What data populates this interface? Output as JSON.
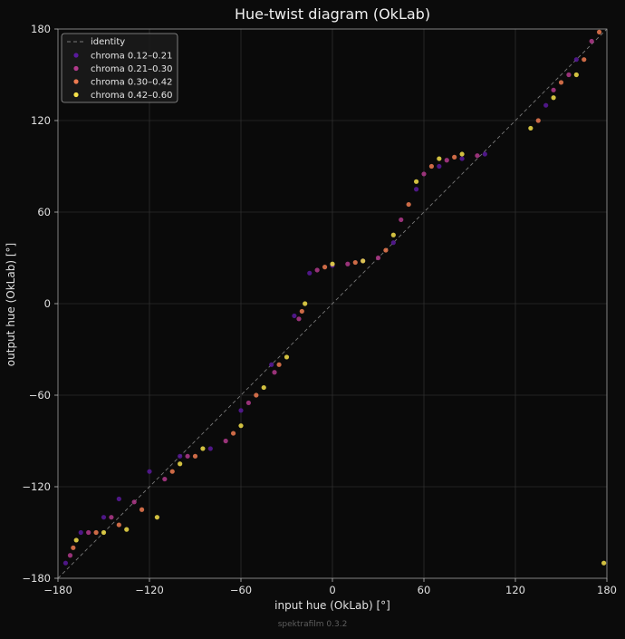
{
  "chart_data": {
    "type": "scatter",
    "title": "Hue-twist diagram (OkLab)",
    "xlabel": "input hue (OkLab)  [°]",
    "ylabel": "output hue (OkLab)  [°]",
    "xlim": [
      -180,
      180
    ],
    "ylim": [
      -180,
      180
    ],
    "xticks": [
      -180,
      -120,
      -60,
      0,
      60,
      120,
      180
    ],
    "yticks": [
      -180,
      -120,
      -60,
      0,
      60,
      120,
      180
    ],
    "grid": true,
    "legend_position": "top-left",
    "identity_label": "identity",
    "colors": {
      "background": "#0b0b0b",
      "grid": "#3a3a3a",
      "identity": "#777777",
      "series": [
        "#5a1a9c",
        "#b23a8c",
        "#ee7b51",
        "#f5e14a"
      ]
    },
    "series": [
      {
        "name": "chroma 0.12–0.21",
        "points": [
          [
            -175,
            -170
          ],
          [
            -165,
            -150
          ],
          [
            -150,
            -140
          ],
          [
            -140,
            -128
          ],
          [
            -120,
            -110
          ],
          [
            -100,
            -100
          ],
          [
            -80,
            -95
          ],
          [
            -60,
            -70
          ],
          [
            -40,
            -40
          ],
          [
            -25,
            -8
          ],
          [
            -15,
            20
          ],
          [
            0,
            25
          ],
          [
            20,
            28
          ],
          [
            40,
            40
          ],
          [
            55,
            75
          ],
          [
            70,
            90
          ],
          [
            85,
            95
          ],
          [
            100,
            98
          ],
          [
            140,
            130
          ],
          [
            160,
            160
          ]
        ]
      },
      {
        "name": "chroma 0.21–0.30",
        "points": [
          [
            -172,
            -165
          ],
          [
            -160,
            -150
          ],
          [
            -145,
            -140
          ],
          [
            -130,
            -130
          ],
          [
            -110,
            -115
          ],
          [
            -95,
            -100
          ],
          [
            -70,
            -90
          ],
          [
            -55,
            -65
          ],
          [
            -38,
            -45
          ],
          [
            -22,
            -10
          ],
          [
            -10,
            22
          ],
          [
            10,
            26
          ],
          [
            30,
            30
          ],
          [
            45,
            55
          ],
          [
            60,
            85
          ],
          [
            75,
            94
          ],
          [
            95,
            97
          ],
          [
            145,
            140
          ],
          [
            155,
            150
          ],
          [
            170,
            172
          ]
        ]
      },
      {
        "name": "chroma 0.30–0.42",
        "points": [
          [
            -170,
            -160
          ],
          [
            -155,
            -150
          ],
          [
            -140,
            -145
          ],
          [
            -125,
            -135
          ],
          [
            -105,
            -110
          ],
          [
            -90,
            -100
          ],
          [
            -65,
            -85
          ],
          [
            -50,
            -60
          ],
          [
            -35,
            -40
          ],
          [
            -20,
            -5
          ],
          [
            -5,
            24
          ],
          [
            15,
            27
          ],
          [
            35,
            35
          ],
          [
            50,
            65
          ],
          [
            65,
            90
          ],
          [
            80,
            96
          ],
          [
            135,
            120
          ],
          [
            150,
            145
          ],
          [
            165,
            160
          ],
          [
            175,
            178
          ]
        ]
      },
      {
        "name": "chroma 0.42–0.60",
        "points": [
          [
            -168,
            -155
          ],
          [
            -150,
            -150
          ],
          [
            -135,
            -148
          ],
          [
            -115,
            -140
          ],
          [
            -100,
            -105
          ],
          [
            -85,
            -95
          ],
          [
            -60,
            -80
          ],
          [
            -45,
            -55
          ],
          [
            -30,
            -35
          ],
          [
            -18,
            0
          ],
          [
            0,
            26
          ],
          [
            20,
            28
          ],
          [
            40,
            45
          ],
          [
            55,
            80
          ],
          [
            70,
            95
          ],
          [
            85,
            98
          ],
          [
            130,
            115
          ],
          [
            145,
            135
          ],
          [
            160,
            150
          ],
          [
            178,
            -170
          ]
        ]
      }
    ]
  },
  "footer": {
    "credit": "spektrafilm 0.3.2"
  }
}
